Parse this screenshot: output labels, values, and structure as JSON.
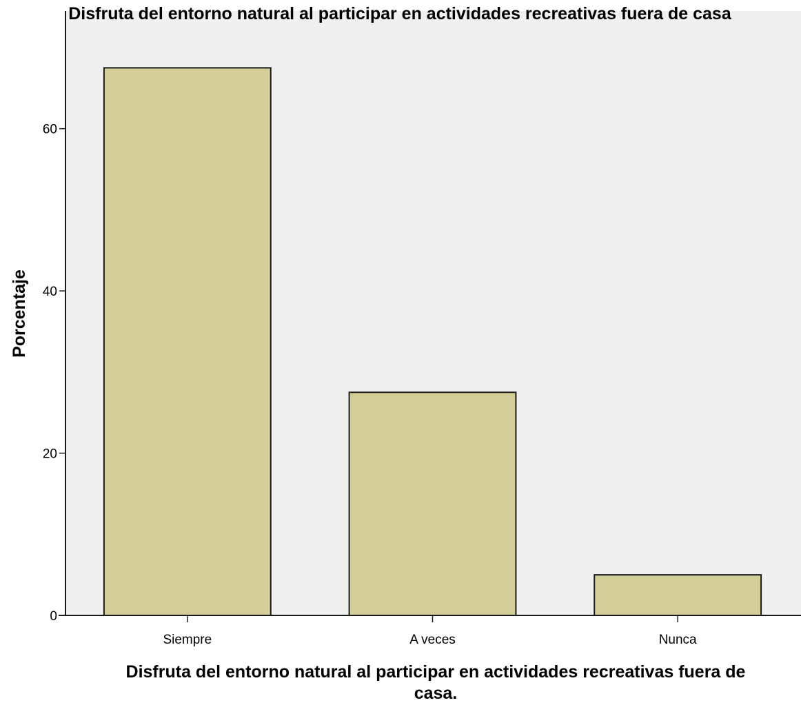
{
  "chart_data": {
    "type": "bar",
    "title": "Disfruta del entorno natural al participar en actividades recreativas fuera de casa",
    "xlabel_lines": [
      "Disfruta del entorno natural al participar en actividades recreativas fuera de",
      "casa."
    ],
    "ylabel": "Porcentaje",
    "categories": [
      "Siempre",
      "A veces",
      "Nunca"
    ],
    "values": [
      67.5,
      27.5,
      5.0
    ],
    "ylim": [
      0,
      74.5
    ],
    "yticks": [
      0,
      20,
      40,
      60
    ],
    "ytick_labels": [
      "0",
      "20",
      "40",
      "60"
    ],
    "grid": false,
    "legend": "none",
    "colors": {
      "bar_fill": "#d3ce98",
      "bar_stroke": "#1a1a1a",
      "plot_background": "#f0f0f0",
      "axis": "#1a1a1a"
    }
  }
}
